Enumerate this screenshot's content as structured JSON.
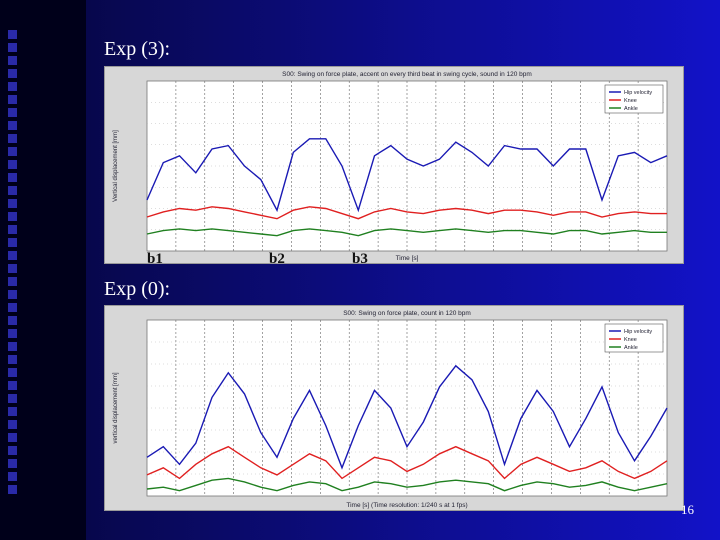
{
  "slide": {
    "heading_top": "Exp (3):",
    "heading_bottom": "Exp (0):",
    "page_number": "16"
  },
  "colors": {
    "background": "#1212c8",
    "blue_line": "#1a1ab4",
    "red_line": "#e02020",
    "green_line": "#208020"
  },
  "chart_data": [
    {
      "type": "line",
      "title": "S00: Swing on force plate, accent on every third beat in swing cycle, sound in 120 bpm",
      "xlabel": "Time [s]",
      "ylabel": "Vertical displacement [mm]",
      "beat_labels": [
        "b1",
        "b2",
        "b3"
      ],
      "series": [
        {
          "name": "Hip velocity",
          "color": "#1a1ab4",
          "values": [
            0.3,
            0.52,
            0.56,
            0.46,
            0.6,
            0.62,
            0.5,
            0.42,
            0.24,
            0.58,
            0.66,
            0.66,
            0.5,
            0.24,
            0.56,
            0.62,
            0.54,
            0.5,
            0.54,
            0.64,
            0.58,
            0.5,
            0.62,
            0.6,
            0.6,
            0.5,
            0.6,
            0.6,
            0.3,
            0.56,
            0.58,
            0.52,
            0.56
          ]
        },
        {
          "name": "Knee",
          "color": "#e02020",
          "values": [
            0.2,
            0.23,
            0.25,
            0.24,
            0.26,
            0.25,
            0.23,
            0.21,
            0.19,
            0.24,
            0.26,
            0.25,
            0.22,
            0.19,
            0.23,
            0.25,
            0.23,
            0.22,
            0.24,
            0.25,
            0.24,
            0.22,
            0.24,
            0.24,
            0.23,
            0.21,
            0.23,
            0.23,
            0.2,
            0.22,
            0.23,
            0.22,
            0.22
          ]
        },
        {
          "name": "Ankle",
          "color": "#208020",
          "values": [
            0.1,
            0.12,
            0.13,
            0.12,
            0.13,
            0.12,
            0.11,
            0.1,
            0.09,
            0.12,
            0.13,
            0.12,
            0.11,
            0.09,
            0.12,
            0.13,
            0.12,
            0.11,
            0.12,
            0.13,
            0.12,
            0.11,
            0.12,
            0.12,
            0.11,
            0.1,
            0.12,
            0.12,
            0.1,
            0.11,
            0.12,
            0.11,
            0.11
          ]
        }
      ]
    },
    {
      "type": "line",
      "title": "S00: Swing on force plate, count in 120 bpm",
      "xlabel": "Time [s] (Time resolution: 1/240 s at 1 fps)",
      "ylabel": "vertical displacement [mm]",
      "series": [
        {
          "name": "Hip velocity",
          "color": "#1a1ab4",
          "values": [
            0.22,
            0.28,
            0.18,
            0.3,
            0.56,
            0.7,
            0.58,
            0.36,
            0.22,
            0.44,
            0.6,
            0.4,
            0.16,
            0.4,
            0.6,
            0.5,
            0.28,
            0.42,
            0.62,
            0.74,
            0.66,
            0.48,
            0.18,
            0.44,
            0.6,
            0.48,
            0.28,
            0.44,
            0.62,
            0.36,
            0.2,
            0.34,
            0.5
          ]
        },
        {
          "name": "Knee",
          "color": "#e02020",
          "values": [
            0.12,
            0.16,
            0.1,
            0.18,
            0.24,
            0.28,
            0.22,
            0.16,
            0.12,
            0.18,
            0.24,
            0.2,
            0.1,
            0.16,
            0.22,
            0.2,
            0.14,
            0.18,
            0.24,
            0.28,
            0.24,
            0.2,
            0.1,
            0.18,
            0.22,
            0.18,
            0.14,
            0.16,
            0.2,
            0.14,
            0.1,
            0.14,
            0.2
          ]
        },
        {
          "name": "Ankle",
          "color": "#208020",
          "values": [
            0.04,
            0.05,
            0.03,
            0.06,
            0.09,
            0.1,
            0.08,
            0.05,
            0.03,
            0.06,
            0.08,
            0.07,
            0.03,
            0.05,
            0.08,
            0.07,
            0.05,
            0.06,
            0.08,
            0.09,
            0.08,
            0.07,
            0.03,
            0.06,
            0.08,
            0.07,
            0.05,
            0.06,
            0.08,
            0.05,
            0.03,
            0.05,
            0.07
          ]
        }
      ]
    }
  ]
}
